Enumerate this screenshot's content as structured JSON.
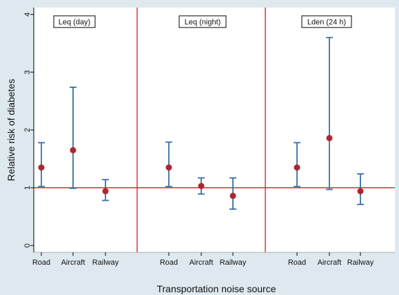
{
  "chart_data": {
    "type": "scatter",
    "subtype": "point-estimate with 95% confidence interval error bars",
    "xlabel": "Transportation noise source",
    "ylabel": "Relative risk of diabetes",
    "ylim": [
      0,
      4
    ],
    "yticks": [
      0,
      1,
      2,
      3,
      4
    ],
    "reference_line": 1,
    "grid": false,
    "legend": "none",
    "colors": {
      "point": "#b0252e",
      "error_bar": "#3a6ea5",
      "reference_line": "#e0252b",
      "panel_divider": "#e0252b",
      "plot_background": "#ffffff",
      "outer_background": "#dde9ef"
    },
    "panels": [
      {
        "label": "Leq (day)",
        "categories": [
          "Road",
          "Aircraft",
          "Railway"
        ],
        "estimate": [
          1.35,
          1.65,
          0.94
        ],
        "lower": [
          1.02,
          0.99,
          0.78
        ],
        "upper": [
          1.78,
          2.74,
          1.14
        ]
      },
      {
        "label": "Leq (night)",
        "categories": [
          "Road",
          "Aircraft",
          "Railway"
        ],
        "estimate": [
          1.35,
          1.03,
          0.86
        ],
        "lower": [
          1.02,
          0.89,
          0.63
        ],
        "upper": [
          1.79,
          1.17,
          1.17
        ]
      },
      {
        "label": "Lden (24 h)",
        "categories": [
          "Road",
          "Aircraft",
          "Railway"
        ],
        "estimate": [
          1.35,
          1.86,
          0.94
        ],
        "lower": [
          1.02,
          0.97,
          0.71
        ],
        "upper": [
          1.78,
          3.6,
          1.24
        ]
      }
    ]
  }
}
